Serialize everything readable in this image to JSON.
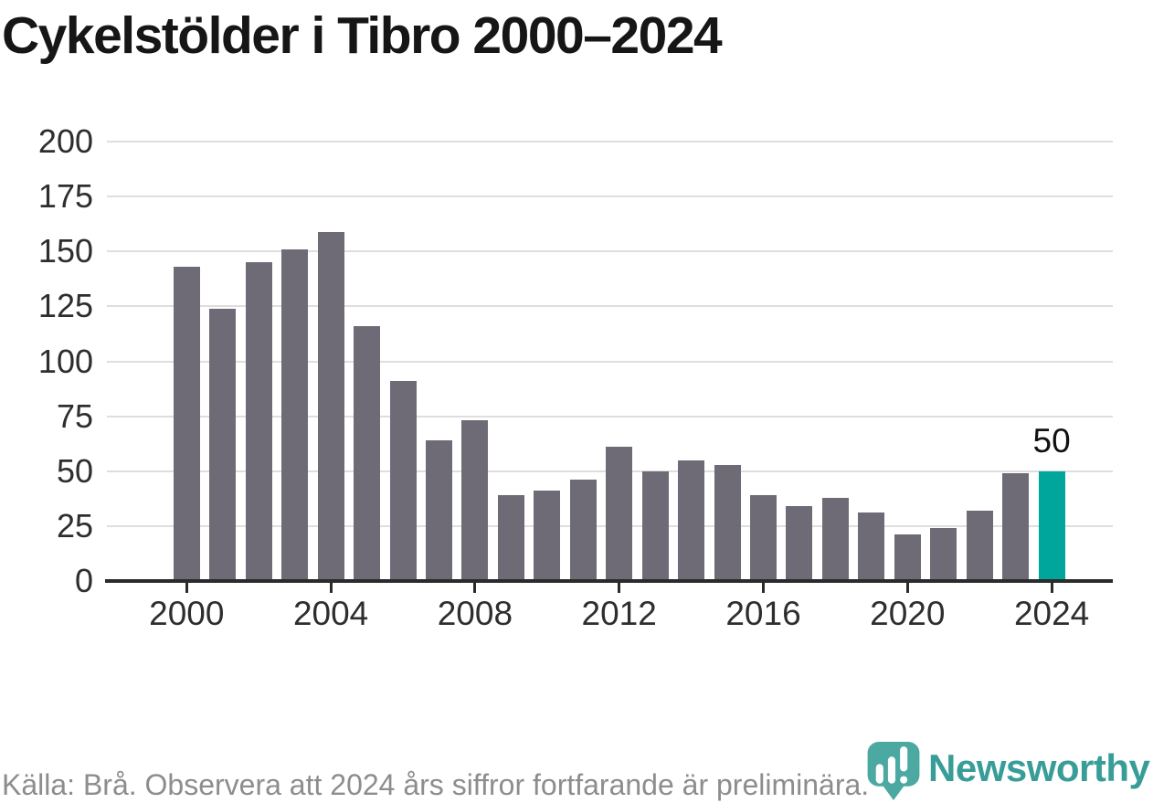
{
  "chart_data": {
    "type": "bar",
    "title": "Cykelstölder i Tibro 2000–2024",
    "categories": [
      "2000",
      "2001",
      "2002",
      "2003",
      "2004",
      "2005",
      "2006",
      "2007",
      "2008",
      "2009",
      "2010",
      "2011",
      "2012",
      "2013",
      "2014",
      "2015",
      "2016",
      "2017",
      "2018",
      "2019",
      "2020",
      "2021",
      "2022",
      "2023",
      "2024"
    ],
    "values": [
      143,
      124,
      145,
      151,
      159,
      116,
      91,
      64,
      73,
      39,
      41,
      46,
      61,
      50,
      55,
      53,
      39,
      34,
      38,
      31,
      21,
      24,
      32,
      49,
      50
    ],
    "xlabel": "",
    "ylabel": "",
    "ylim": [
      0,
      200
    ],
    "yticks": [
      0,
      25,
      50,
      75,
      100,
      125,
      150,
      175,
      200
    ],
    "xticks": [
      "2000",
      "2004",
      "2008",
      "2012",
      "2016",
      "2020",
      "2024"
    ],
    "grid": "horizontal",
    "legend": "none",
    "bar_color": "#6F6B76",
    "highlight": {
      "category": "2024",
      "color": "#00A69C",
      "label": "50"
    }
  },
  "footer": {
    "source_text": "Källa: Brå. Observera att 2024 års siffror fortfarande är preliminära."
  },
  "logo": {
    "brand": "Newsworthy",
    "icon": "newsworthy-bubble-barchart-icon",
    "icon_color": "#4BA9A2",
    "text_color": "#389D98"
  }
}
